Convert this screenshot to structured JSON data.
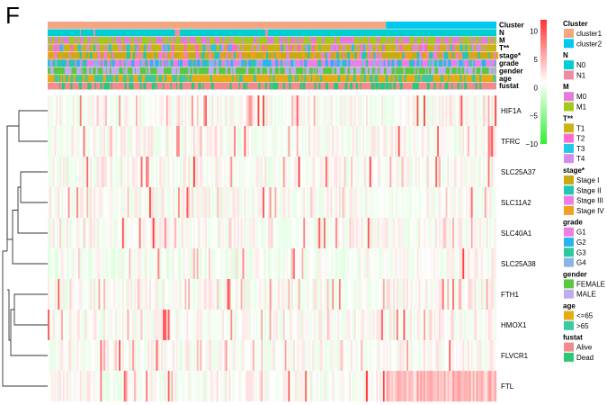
{
  "panel_label": "F",
  "chart_data": {
    "type": "heatmap",
    "title": "",
    "n_samples": 530,
    "cluster_split": 0.754,
    "rows": [
      "HIF1A",
      "TFRC",
      "SLC25A37",
      "SLC11A2",
      "SLC40A1",
      "SLC25A38",
      "FTH1",
      "HMOX1",
      "FLVCR1",
      "FTL"
    ],
    "annotations": [
      {
        "name": "Cluster",
        "levels": [
          "cluster1",
          "cluster2"
        ],
        "colors": [
          "#F4A582",
          "#00C8F0"
        ]
      },
      {
        "name": "N",
        "levels": [
          "N0",
          "N1"
        ],
        "colors": [
          "#00CED1",
          "#F08CA0"
        ]
      },
      {
        "name": "M",
        "levels": [
          "M0",
          "M1"
        ],
        "colors": [
          "#E57BD9",
          "#A5C81E"
        ]
      },
      {
        "name": "T**",
        "levels": [
          "T1",
          "T2",
          "T3",
          "T4"
        ],
        "colors": [
          "#C8B414",
          "#FF69D2",
          "#1EC8E6",
          "#D28CF0"
        ]
      },
      {
        "name": "stage*",
        "levels": [
          "Stage I",
          "Stage II",
          "Stage III",
          "Stage IV"
        ],
        "colors": [
          "#C8AA14",
          "#1EC8B4",
          "#F07CE6",
          "#F0A01E"
        ]
      },
      {
        "name": "grade",
        "levels": [
          "G1",
          "G2",
          "G3",
          "G4"
        ],
        "colors": [
          "#F07CE6",
          "#28B4F0",
          "#2CC8A0",
          "#8CB4E6"
        ]
      },
      {
        "name": "gender",
        "levels": [
          "FEMALE",
          "MALE"
        ],
        "colors": [
          "#5AC83C",
          "#C0AAF0"
        ]
      },
      {
        "name": "age",
        "levels": [
          "<=65",
          ">65"
        ],
        "colors": [
          "#E6AA14",
          "#3CC8A0"
        ]
      },
      {
        "name": "fustat",
        "levels": [
          "Alive",
          "Dead"
        ],
        "colors": [
          "#F08C8C",
          "#2CC878"
        ]
      }
    ],
    "colorbar": {
      "min": -10,
      "max": 12,
      "ticks": [
        10,
        5,
        0,
        -5,
        -10
      ],
      "low_color": "#33EE33",
      "mid_color": "#FFFFFF",
      "high_color": "#FF3333"
    }
  }
}
